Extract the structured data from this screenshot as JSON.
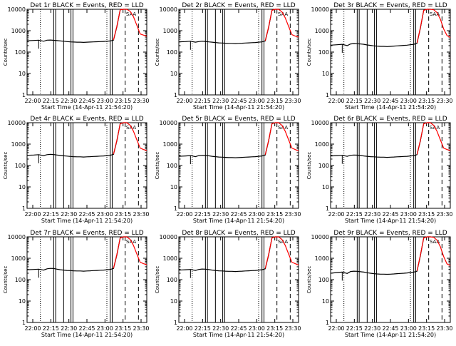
{
  "colors": {
    "events": "#000000",
    "lld": "#ff0000",
    "background": "#ffffff",
    "axis": "#000000"
  },
  "chart_data": [
    {
      "type": "line",
      "title": "Det 1r BLACK = Events, RED = LLD",
      "xlabel": "Start Time (14-Apr-11 21:54:20)",
      "ylabel": "Counts/sec",
      "y_scale": "log",
      "ylim": [
        1,
        10000
      ],
      "x_ticks": [
        "22:00",
        "22:15",
        "22:30",
        "22:45",
        "23:00",
        "23:15",
        "23:30"
      ],
      "x_minutes_range": [
        0,
        36
      ],
      "y_ticks": [
        "1",
        "10",
        "100",
        "1000",
        "10000"
      ],
      "marker_label": "SAA",
      "series": [
        {
          "name": "Events",
          "x": [
            0,
            2,
            3.5,
            5,
            6,
            7,
            8,
            9,
            10,
            11,
            12,
            13,
            14,
            15,
            16,
            17,
            18,
            19,
            20,
            21,
            22,
            23,
            24,
            25,
            26,
            27,
            28,
            29,
            30,
            30.2
          ],
          "y": [
            340,
            350,
            360,
            320,
            360,
            365,
            355,
            345,
            330,
            320,
            310,
            300,
            295,
            290,
            290,
            285,
            290,
            295,
            300,
            305,
            310,
            315,
            320,
            330,
            360,
            1500,
            9500,
            10000,
            10000,
            10000
          ]
        },
        {
          "name": "LLD",
          "x": [
            26,
            27,
            28,
            29,
            30,
            31,
            32,
            33,
            34,
            35,
            36
          ],
          "y": [
            370,
            1600,
            9500,
            10000,
            10000,
            8000,
            4500,
            1800,
            700,
            620,
            550
          ]
        }
      ]
    },
    {
      "type": "line",
      "title": "Det 2r BLACK = Events, RED = LLD",
      "xlabel": "Start Time (14-Apr-11 21:54:20)",
      "ylabel": "Counts/sec",
      "y_scale": "log",
      "ylim": [
        1,
        10000
      ],
      "x_ticks": [
        "22:00",
        "22:15",
        "22:30",
        "22:45",
        "23:00",
        "23:15",
        "23:30"
      ],
      "x_minutes_range": [
        0,
        36
      ],
      "y_ticks": [
        "1",
        "10",
        "100",
        "1000",
        "10000"
      ],
      "marker_label": "SAA",
      "series": [
        {
          "name": "Events",
          "x": [
            0,
            2,
            3.5,
            5,
            6,
            7,
            8,
            9,
            10,
            11,
            12,
            13,
            14,
            15,
            16,
            17,
            18,
            19,
            20,
            21,
            22,
            23,
            24,
            25,
            26,
            27,
            28,
            29,
            30,
            30.2
          ],
          "y": [
            300,
            310,
            320,
            290,
            310,
            320,
            315,
            300,
            290,
            280,
            270,
            265,
            260,
            255,
            255,
            250,
            255,
            260,
            265,
            270,
            275,
            280,
            290,
            300,
            330,
            1400,
            9000,
            10000,
            10000,
            10000
          ]
        },
        {
          "name": "LLD",
          "x": [
            26,
            27,
            28,
            29,
            30,
            31,
            32,
            33,
            34,
            35,
            36
          ],
          "y": [
            340,
            1500,
            9000,
            10000,
            10000,
            7500,
            4000,
            1600,
            650,
            560,
            500
          ]
        }
      ]
    },
    {
      "type": "line",
      "title": "Det 3r BLACK = Events, RED = LLD",
      "xlabel": "Start Time (14-Apr-11 21:54:20)",
      "ylabel": "Counts/sec",
      "y_scale": "log",
      "ylim": [
        1,
        10000
      ],
      "x_ticks": [
        "22:00",
        "22:15",
        "22:30",
        "22:45",
        "23:00",
        "23:15",
        "23:30"
      ],
      "x_minutes_range": [
        0,
        36
      ],
      "y_ticks": [
        "1",
        "10",
        "100",
        "1000",
        "10000"
      ],
      "marker_label": "SAA",
      "series": [
        {
          "name": "Events",
          "x": [
            0,
            2,
            3.5,
            5,
            6,
            7,
            8,
            9,
            10,
            11,
            12,
            13,
            14,
            15,
            16,
            17,
            18,
            19,
            20,
            21,
            22,
            23,
            24,
            25,
            26,
            27,
            28,
            29,
            30,
            30.2
          ],
          "y": [
            210,
            220,
            230,
            200,
            240,
            250,
            245,
            240,
            230,
            215,
            205,
            195,
            190,
            185,
            185,
            180,
            185,
            190,
            195,
            200,
            205,
            210,
            220,
            230,
            260,
            1300,
            9000,
            10000,
            10000,
            10000
          ]
        },
        {
          "name": "LLD",
          "x": [
            26,
            27,
            28,
            29,
            30,
            31,
            32,
            33,
            34,
            35,
            36
          ],
          "y": [
            270,
            1400,
            9000,
            10000,
            10000,
            9500,
            7000,
            3500,
            1200,
            600,
            480
          ]
        }
      ]
    },
    {
      "type": "line",
      "title": "Det 4r BLACK = Events, RED = LLD",
      "xlabel": "Start Time (14-Apr-11 21:54:20)",
      "ylabel": "Counts/sec",
      "y_scale": "log",
      "ylim": [
        1,
        10000
      ],
      "x_ticks": [
        "22:00",
        "22:15",
        "22:30",
        "22:45",
        "23:00",
        "23:15",
        "23:30"
      ],
      "x_minutes_range": [
        0,
        36
      ],
      "y_ticks": [
        "1",
        "10",
        "100",
        "1000",
        "10000"
      ],
      "marker_label": "SAA",
      "series": [
        {
          "name": "Events",
          "x": [
            0,
            2,
            3.5,
            5,
            6,
            7,
            8,
            9,
            10,
            11,
            12,
            13,
            14,
            15,
            16,
            17,
            18,
            19,
            20,
            21,
            22,
            23,
            24,
            25,
            26,
            27,
            28,
            29,
            30,
            30.2
          ],
          "y": [
            300,
            310,
            320,
            290,
            320,
            330,
            325,
            310,
            295,
            285,
            275,
            265,
            260,
            255,
            255,
            250,
            255,
            260,
            265,
            270,
            275,
            280,
            290,
            300,
            330,
            1400,
            9000,
            10000,
            10000,
            10000
          ]
        },
        {
          "name": "LLD",
          "x": [
            26,
            27,
            28,
            29,
            30,
            31,
            32,
            33,
            34,
            35,
            36
          ],
          "y": [
            340,
            1500,
            9000,
            10000,
            10000,
            7500,
            4000,
            1600,
            650,
            560,
            500
          ]
        }
      ]
    },
    {
      "type": "line",
      "title": "Det 5r BLACK = Events, RED = LLD",
      "xlabel": "Start Time (14-Apr-11 21:54:20)",
      "ylabel": "Counts/sec",
      "y_scale": "log",
      "ylim": [
        1,
        10000
      ],
      "x_ticks": [
        "22:00",
        "22:15",
        "22:30",
        "22:45",
        "23:00",
        "23:15",
        "23:30"
      ],
      "x_minutes_range": [
        0,
        36
      ],
      "y_ticks": [
        "1",
        "10",
        "100",
        "1000",
        "10000"
      ],
      "marker_label": "SAA",
      "series": [
        {
          "name": "Events",
          "x": [
            0,
            2,
            3.5,
            5,
            6,
            7,
            8,
            9,
            10,
            11,
            12,
            13,
            14,
            15,
            16,
            17,
            18,
            19,
            20,
            21,
            22,
            23,
            24,
            25,
            26,
            27,
            28,
            29,
            30,
            30.2
          ],
          "y": [
            270,
            280,
            290,
            260,
            290,
            300,
            295,
            285,
            270,
            260,
            250,
            245,
            240,
            235,
            235,
            230,
            235,
            240,
            245,
            250,
            255,
            260,
            270,
            280,
            310,
            1400,
            9000,
            10000,
            10000,
            10000
          ]
        },
        {
          "name": "LLD",
          "x": [
            26,
            27,
            28,
            29,
            30,
            31,
            32,
            33,
            34,
            35,
            36
          ],
          "y": [
            320,
            1500,
            9000,
            10000,
            10000,
            7500,
            4000,
            1600,
            650,
            560,
            480
          ]
        }
      ]
    },
    {
      "type": "line",
      "title": "Det 6r BLACK = Events, RED = LLD",
      "xlabel": "Start Time (14-Apr-11 21:54:20)",
      "ylabel": "Counts/sec",
      "y_scale": "log",
      "ylim": [
        1,
        10000
      ],
      "x_ticks": [
        "22:00",
        "22:15",
        "22:30",
        "22:45",
        "23:00",
        "23:15",
        "23:30"
      ],
      "x_minutes_range": [
        0,
        36
      ],
      "y_ticks": [
        "1",
        "10",
        "100",
        "1000",
        "10000"
      ],
      "marker_label": "SAA",
      "series": [
        {
          "name": "Events",
          "x": [
            0,
            2,
            3.5,
            5,
            6,
            7,
            8,
            9,
            10,
            11,
            12,
            13,
            14,
            15,
            16,
            17,
            18,
            19,
            20,
            21,
            22,
            23,
            24,
            25,
            26,
            27,
            28,
            29,
            30,
            30.2
          ],
          "y": [
            280,
            290,
            300,
            270,
            300,
            310,
            305,
            295,
            280,
            270,
            260,
            255,
            250,
            245,
            245,
            240,
            245,
            250,
            255,
            260,
            265,
            270,
            280,
            290,
            320,
            1400,
            9000,
            10000,
            10000,
            10000
          ]
        },
        {
          "name": "LLD",
          "x": [
            26,
            27,
            28,
            29,
            30,
            31,
            32,
            33,
            34,
            35,
            36
          ],
          "y": [
            330,
            1500,
            9000,
            10000,
            10000,
            7500,
            4000,
            1600,
            650,
            560,
            500
          ]
        }
      ]
    },
    {
      "type": "line",
      "title": "Det 7r BLACK = Events, RED = LLD",
      "xlabel": "Start Time (14-Apr-11 21:54:20)",
      "ylabel": "Counts/sec",
      "y_scale": "log",
      "ylim": [
        1,
        10000
      ],
      "x_ticks": [
        "22:00",
        "22:15",
        "22:30",
        "22:45",
        "23:00",
        "23:15",
        "23:30"
      ],
      "x_minutes_range": [
        0,
        36
      ],
      "y_ticks": [
        "1",
        "10",
        "100",
        "1000",
        "10000"
      ],
      "marker_label": "SAA",
      "series": [
        {
          "name": "Events",
          "x": [
            0,
            2,
            3.5,
            5,
            6,
            7,
            8,
            9,
            10,
            11,
            12,
            13,
            14,
            15,
            16,
            17,
            18,
            19,
            20,
            21,
            22,
            23,
            24,
            25,
            26,
            27,
            28,
            29,
            30,
            30.2
          ],
          "y": [
            290,
            300,
            310,
            280,
            320,
            335,
            330,
            310,
            290,
            280,
            270,
            265,
            260,
            255,
            255,
            250,
            255,
            260,
            265,
            270,
            275,
            280,
            290,
            300,
            330,
            1400,
            9000,
            10000,
            10000,
            10000
          ]
        },
        {
          "name": "LLD",
          "x": [
            26,
            27,
            28,
            29,
            30,
            31,
            32,
            33,
            34,
            35,
            36
          ],
          "y": [
            340,
            1500,
            9000,
            10000,
            10000,
            7500,
            4000,
            1600,
            650,
            560,
            500
          ]
        }
      ]
    },
    {
      "type": "line",
      "title": "Det 8r BLACK = Events, RED = LLD",
      "xlabel": "Start Time (14-Apr-11 21:54:20)",
      "ylabel": "Counts/sec",
      "y_scale": "log",
      "ylim": [
        1,
        10000
      ],
      "x_ticks": [
        "22:00",
        "22:15",
        "22:30",
        "22:45",
        "23:00",
        "23:15",
        "23:30"
      ],
      "x_minutes_range": [
        0,
        36
      ],
      "y_ticks": [
        "1",
        "10",
        "100",
        "1000",
        "10000"
      ],
      "marker_label": "SAA",
      "series": [
        {
          "name": "Events",
          "x": [
            0,
            2,
            3.5,
            5,
            6,
            7,
            8,
            9,
            10,
            11,
            12,
            13,
            14,
            15,
            16,
            17,
            18,
            19,
            20,
            21,
            22,
            23,
            24,
            25,
            26,
            27,
            28,
            29,
            30,
            30.2
          ],
          "y": [
            280,
            290,
            300,
            270,
            300,
            315,
            310,
            295,
            280,
            270,
            260,
            255,
            250,
            245,
            245,
            240,
            245,
            250,
            255,
            260,
            265,
            270,
            280,
            290,
            320,
            1400,
            9000,
            10000,
            10000,
            10000
          ]
        },
        {
          "name": "LLD",
          "x": [
            26,
            27,
            28,
            29,
            30,
            31,
            32,
            33,
            34,
            35,
            36
          ],
          "y": [
            330,
            1500,
            9000,
            10000,
            10000,
            7500,
            4000,
            1600,
            650,
            560,
            480
          ]
        }
      ]
    },
    {
      "type": "line",
      "title": "Det 9r BLACK = Events, RED = LLD",
      "xlabel": "Start Time (14-Apr-11 21:54:20)",
      "ylabel": "Counts/sec",
      "y_scale": "log",
      "ylim": [
        1,
        10000
      ],
      "x_ticks": [
        "22:00",
        "22:15",
        "22:30",
        "22:45",
        "23:00",
        "23:15",
        "23:30"
      ],
      "x_minutes_range": [
        0,
        36
      ],
      "y_ticks": [
        "1",
        "10",
        "100",
        "1000",
        "10000"
      ],
      "marker_label": "SAA",
      "series": [
        {
          "name": "Events",
          "x": [
            0,
            2,
            3.5,
            5,
            6,
            7,
            8,
            9,
            10,
            11,
            12,
            13,
            14,
            15,
            16,
            17,
            18,
            19,
            20,
            21,
            22,
            23,
            24,
            25,
            26,
            27,
            28,
            29,
            30,
            30.2
          ],
          "y": [
            200,
            215,
            225,
            195,
            240,
            250,
            245,
            235,
            225,
            210,
            200,
            190,
            185,
            180,
            180,
            178,
            180,
            185,
            190,
            195,
            200,
            205,
            215,
            225,
            250,
            1300,
            9000,
            10000,
            10000,
            10000
          ]
        },
        {
          "name": "LLD",
          "x": [
            26,
            27,
            28,
            29,
            30,
            31,
            32,
            33,
            34,
            35,
            36
          ],
          "y": [
            260,
            1400,
            9000,
            10000,
            10000,
            9500,
            7000,
            3500,
            1200,
            550,
            450
          ]
        }
      ]
    }
  ]
}
